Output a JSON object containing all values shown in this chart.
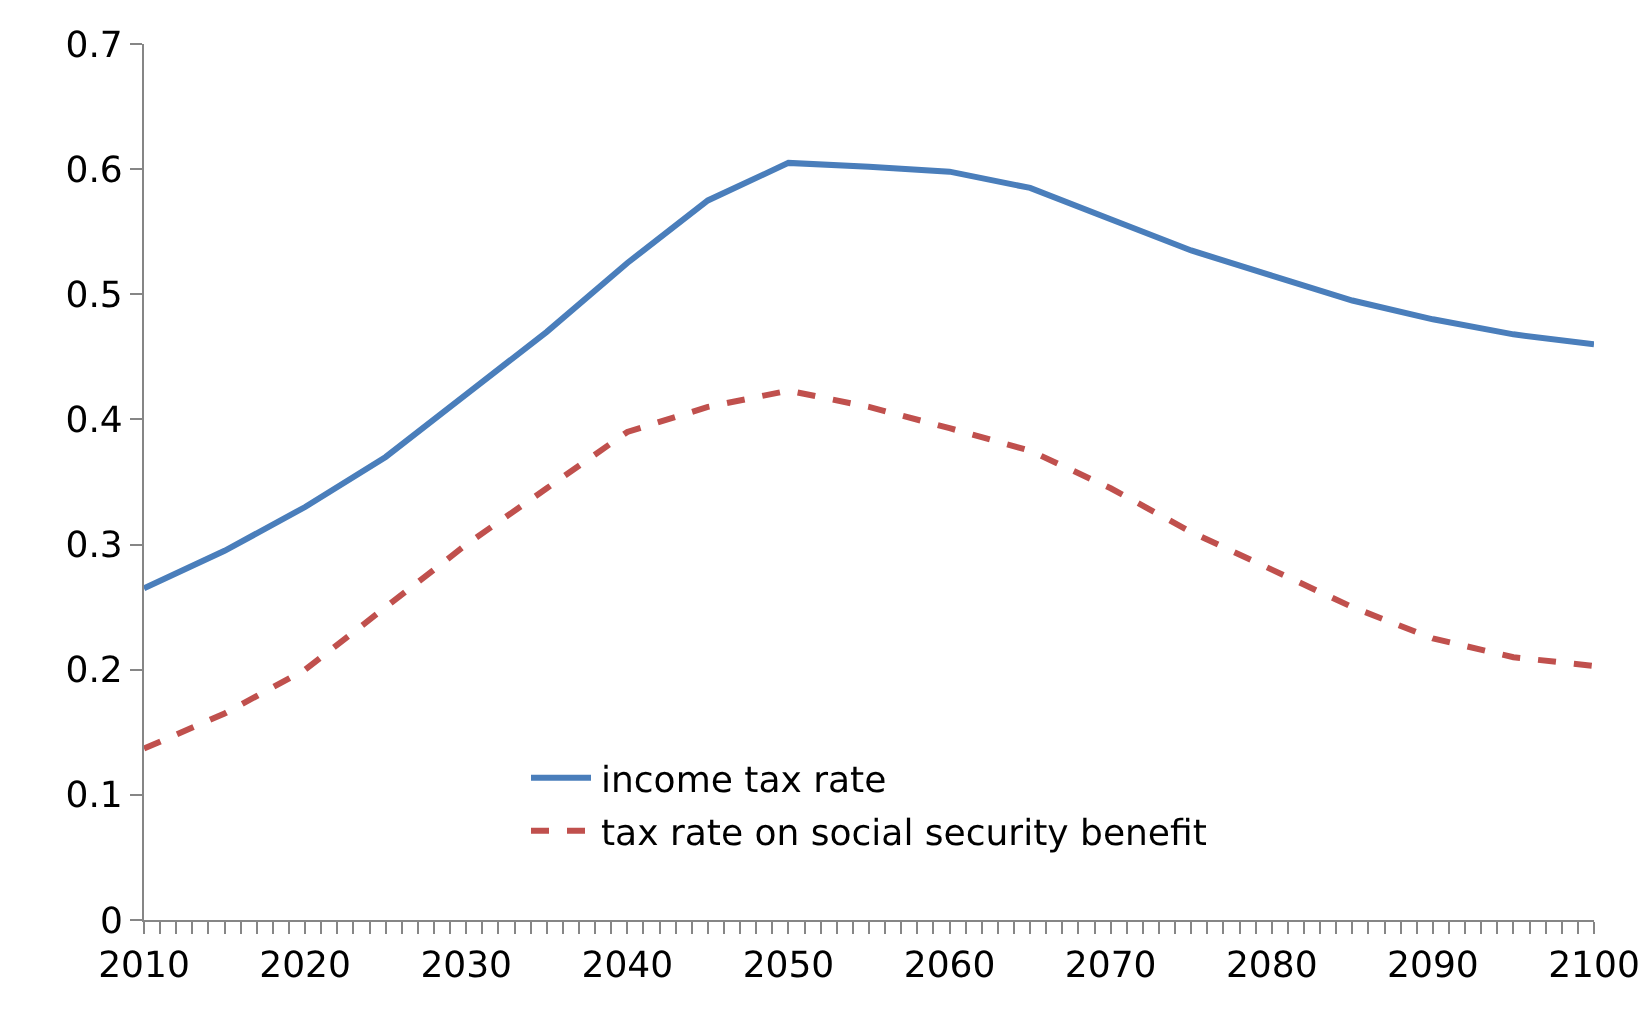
{
  "chart_data": {
    "type": "line",
    "x": [
      2010,
      2015,
      2020,
      2025,
      2030,
      2035,
      2040,
      2045,
      2050,
      2055,
      2060,
      2065,
      2070,
      2075,
      2080,
      2085,
      2090,
      2095,
      2100
    ],
    "series": [
      {
        "name": "income tax rate",
        "color": "#4a7ebb",
        "line_style": "solid",
        "values": [
          0.265,
          0.295,
          0.33,
          0.37,
          0.42,
          0.47,
          0.525,
          0.575,
          0.605,
          0.602,
          0.598,
          0.585,
          0.56,
          0.535,
          0.515,
          0.495,
          0.48,
          0.468,
          0.46
        ]
      },
      {
        "name": "tax rate on social security benefit",
        "color": "#c0504d",
        "line_style": "dashed",
        "values": [
          0.137,
          0.165,
          0.2,
          0.25,
          0.3,
          0.345,
          0.39,
          0.41,
          0.423,
          0.41,
          0.393,
          0.375,
          0.345,
          0.31,
          0.28,
          0.25,
          0.225,
          0.21,
          0.203
        ]
      }
    ],
    "xlim": [
      2010,
      2100
    ],
    "xticks": [
      2010,
      2020,
      2030,
      2040,
      2050,
      2060,
      2070,
      2080,
      2090,
      2100
    ],
    "ylim": [
      0,
      0.7
    ],
    "yticks": [
      0,
      0.1,
      0.2,
      0.3,
      0.4,
      0.5,
      0.6,
      0.7
    ],
    "grid": false,
    "legend": "bottom",
    "marker": "none"
  }
}
